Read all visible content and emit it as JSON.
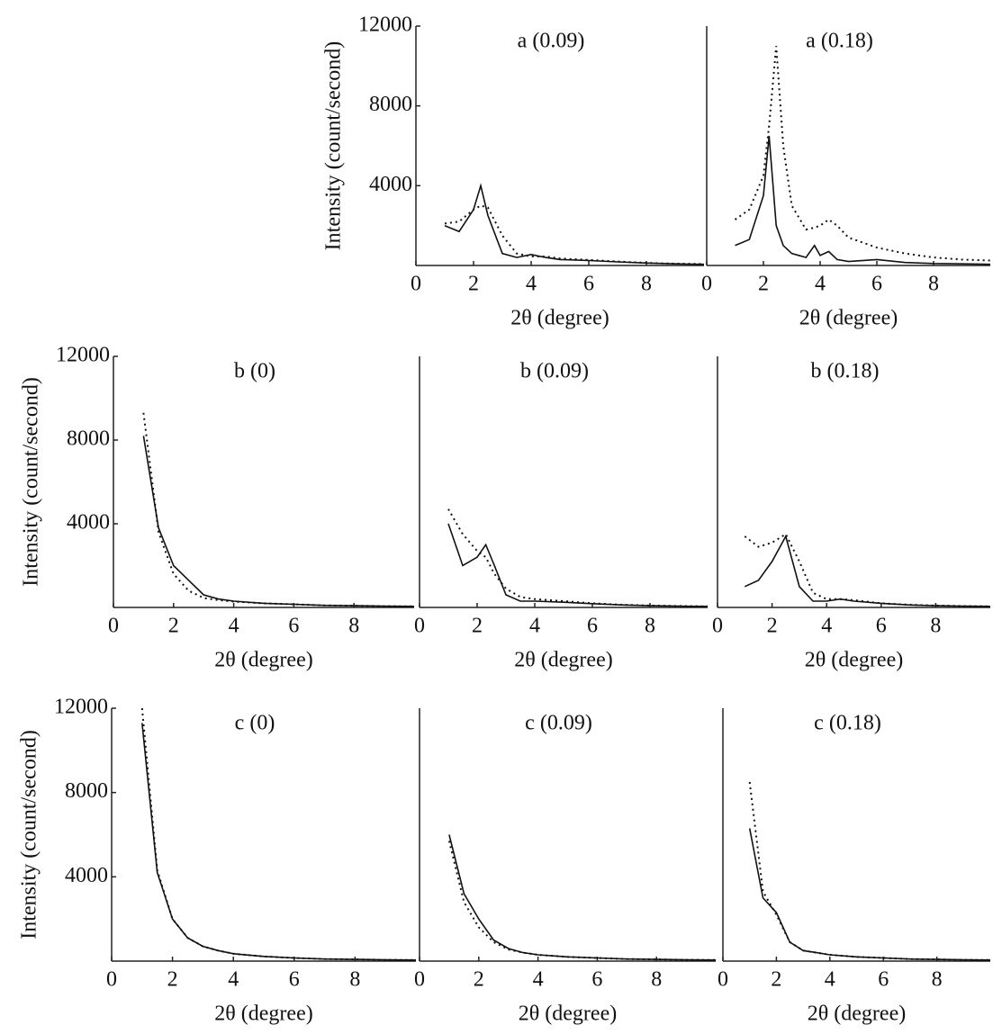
{
  "chart_data": [
    {
      "type": "line",
      "title": "a (0.09)",
      "xlabel": "2θ (degree)",
      "ylabel": "Intensity  (count/second)",
      "x": [
        1,
        1.5,
        2,
        2.25,
        2.5,
        3,
        3.5,
        4,
        4.5,
        5,
        6,
        7,
        8,
        9,
        10
      ],
      "series": [
        {
          "color": "#111",
          "style": "solid",
          "values": [
            2000,
            1700,
            2800,
            4000,
            2500,
            600,
            400,
            550,
            400,
            300,
            250,
            180,
            120,
            80,
            60
          ]
        },
        {
          "color": "#111",
          "style": "dotted",
          "values": [
            2100,
            2200,
            2800,
            3000,
            2900,
            1500,
            600,
            450,
            450,
            350,
            280,
            200,
            130,
            90,
            70
          ]
        }
      ],
      "xlim": [
        0,
        10
      ],
      "xticks": [
        0,
        2,
        4,
        6,
        8
      ],
      "ylim": [
        0,
        12000
      ],
      "yticks": [
        4000,
        8000,
        12000
      ]
    },
    {
      "type": "line",
      "title": "a (0.18)",
      "xlabel": "2θ (degree)",
      "x": [
        1,
        1.5,
        2,
        2.2,
        2.45,
        2.7,
        3,
        3.5,
        3.8,
        4,
        4.3,
        4.6,
        5,
        6,
        7,
        8,
        9,
        10
      ],
      "series": [
        {
          "color": "#111",
          "style": "solid",
          "values": [
            1000,
            1300,
            3500,
            6500,
            2000,
            1000,
            600,
            400,
            1000,
            500,
            700,
            300,
            200,
            300,
            150,
            100,
            80,
            60
          ]
        },
        {
          "color": "#111",
          "style": "dotted",
          "values": [
            2300,
            2800,
            4500,
            7000,
            11000,
            6000,
            3000,
            1800,
            1900,
            2000,
            2300,
            2000,
            1400,
            900,
            600,
            400,
            300,
            250
          ]
        }
      ],
      "xlim": [
        0,
        10
      ],
      "xticks": [
        0,
        2,
        4,
        6,
        8
      ],
      "ylim": [
        0,
        12000
      ]
    },
    {
      "type": "line",
      "title": "b (0)",
      "xlabel": "2θ (degree)",
      "ylabel": "Intensity  (count/second)",
      "x": [
        1,
        1.5,
        2,
        2.5,
        3,
        3.5,
        4,
        5,
        6,
        7,
        8,
        9,
        10
      ],
      "series": [
        {
          "color": "#111",
          "style": "solid",
          "values": [
            8200,
            3800,
            2000,
            1300,
            600,
            400,
            300,
            200,
            150,
            100,
            80,
            60,
            50
          ]
        },
        {
          "color": "#111",
          "style": "dotted",
          "values": [
            9300,
            3600,
            1600,
            800,
            450,
            350,
            280,
            200,
            150,
            100,
            80,
            60,
            50
          ]
        }
      ],
      "xlim": [
        0,
        10
      ],
      "xticks": [
        0,
        2,
        4,
        6,
        8
      ],
      "ylim": [
        0,
        12000
      ],
      "yticks": [
        4000,
        8000,
        12000
      ]
    },
    {
      "type": "line",
      "title": "b (0.09)",
      "xlabel": "2θ (degree)",
      "x": [
        1,
        1.5,
        2,
        2.3,
        2.6,
        3,
        3.5,
        4,
        5,
        6,
        7,
        8,
        9,
        10
      ],
      "series": [
        {
          "color": "#111",
          "style": "solid",
          "values": [
            4000,
            2000,
            2400,
            3000,
            2000,
            600,
            300,
            300,
            250,
            180,
            120,
            80,
            60,
            50
          ]
        },
        {
          "color": "#111",
          "style": "dotted",
          "values": [
            4700,
            3500,
            2700,
            2400,
            1600,
            900,
            500,
            400,
            300,
            200,
            130,
            90,
            70,
            50
          ]
        }
      ],
      "xlim": [
        0,
        10
      ],
      "xticks": [
        0,
        2,
        4,
        6,
        8
      ],
      "ylim": [
        0,
        12000
      ]
    },
    {
      "type": "line",
      "title": "b (0.18)",
      "xlabel": "2θ (degree)",
      "x": [
        1,
        1.5,
        2,
        2.5,
        3,
        3.5,
        4,
        4.5,
        5,
        6,
        7,
        8,
        9,
        10
      ],
      "series": [
        {
          "color": "#111",
          "style": "solid",
          "values": [
            1000,
            1300,
            2200,
            3400,
            1000,
            300,
            300,
            400,
            300,
            200,
            120,
            80,
            60,
            50
          ]
        },
        {
          "color": "#111",
          "style": "dotted",
          "values": [
            3400,
            2900,
            3100,
            3500,
            2200,
            700,
            400,
            400,
            350,
            200,
            130,
            90,
            70,
            50
          ]
        }
      ],
      "xlim": [
        0,
        10
      ],
      "xticks": [
        0,
        2,
        4,
        6,
        8
      ],
      "ylim": [
        0,
        12000
      ]
    },
    {
      "type": "line",
      "title": "c (0)",
      "xlabel": "2θ (degree)",
      "ylabel": "Intensity  (count/second)",
      "x": [
        1,
        1.5,
        2,
        2.5,
        3,
        3.5,
        4,
        5,
        6,
        7,
        8,
        9,
        10
      ],
      "series": [
        {
          "color": "#111",
          "style": "solid",
          "values": [
            11300,
            4200,
            2000,
            1100,
            700,
            500,
            350,
            220,
            150,
            100,
            80,
            60,
            50
          ]
        },
        {
          "color": "#111",
          "style": "dotted",
          "values": [
            12000,
            4300,
            2000,
            1100,
            700,
            500,
            350,
            220,
            150,
            100,
            80,
            60,
            50
          ]
        }
      ],
      "xlim": [
        0,
        10
      ],
      "xticks": [
        0,
        2,
        4,
        6,
        8
      ],
      "ylim": [
        0,
        12000
      ],
      "yticks": [
        4000,
        8000,
        12000
      ]
    },
    {
      "type": "line",
      "title": "c (0.09)",
      "xlabel": "2θ (degree)",
      "x": [
        1,
        1.5,
        2,
        2.5,
        3,
        3.5,
        4,
        5,
        6,
        7,
        8,
        9,
        10
      ],
      "series": [
        {
          "color": "#111",
          "style": "solid",
          "values": [
            6000,
            3200,
            2000,
            1000,
            600,
            400,
            300,
            200,
            150,
            100,
            80,
            60,
            50
          ]
        },
        {
          "color": "#111",
          "style": "dotted",
          "values": [
            5700,
            2800,
            1600,
            900,
            550,
            400,
            300,
            200,
            150,
            100,
            80,
            60,
            50
          ]
        }
      ],
      "xlim": [
        0,
        10
      ],
      "xticks": [
        0,
        2,
        4,
        6,
        8
      ],
      "ylim": [
        0,
        12000
      ]
    },
    {
      "type": "line",
      "title": "c (0.18)",
      "xlabel": "2θ (degree)",
      "x": [
        1,
        1.5,
        2,
        2.5,
        3,
        3.5,
        4,
        5,
        6,
        7,
        8,
        9,
        10
      ],
      "series": [
        {
          "color": "#111",
          "style": "solid",
          "values": [
            6300,
            3000,
            2300,
            900,
            500,
            400,
            300,
            200,
            150,
            100,
            80,
            60,
            50
          ]
        },
        {
          "color": "#111",
          "style": "dotted",
          "values": [
            8500,
            3300,
            2200,
            900,
            500,
            400,
            300,
            200,
            150,
            100,
            80,
            60,
            50
          ]
        }
      ],
      "xlim": [
        0,
        10
      ],
      "xticks": [
        0,
        2,
        4,
        6,
        8
      ],
      "ylim": [
        0,
        12000
      ]
    }
  ]
}
